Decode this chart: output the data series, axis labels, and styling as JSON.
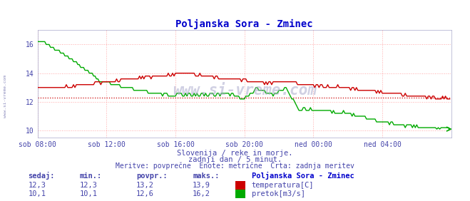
{
  "title": "Poljanska Sora - Zminec",
  "title_color": "#0000cc",
  "title_fontsize": 10,
  "bg_color": "#ffffff",
  "plot_bg_color": "#ffffff",
  "grid_color": "#ffaaaa",
  "ylabel_color": "#4444aa",
  "xlabel_color": "#4444aa",
  "tick_color": "#4444aa",
  "xticklabels": [
    "sob 08:00",
    "sob 12:00",
    "sob 16:00",
    "sob 20:00",
    "ned 00:00",
    "ned 04:00"
  ],
  "xtick_positions": [
    0,
    48,
    96,
    144,
    192,
    240
  ],
  "ytick_positions": [
    10,
    12,
    14,
    16
  ],
  "ylim": [
    9.5,
    17.0
  ],
  "xlim": [
    0,
    288
  ],
  "total_points": 288,
  "avg_temp_line": 12.3,
  "temp_color": "#cc0000",
  "flow_color": "#00aa00",
  "avg_line_color": "#cc0000",
  "footer_line1": "Slovenija / reke in morje.",
  "footer_line2": "zadnji dan / 5 minut.",
  "footer_line3": "Meritve: povprečne  Enote: metrične  Črta: zadnja meritev",
  "footer_color": "#4444aa",
  "legend_title": "Poljanska Sora - Zminec",
  "legend_title_color": "#0000cc",
  "legend_entries": [
    "temperatura[C]",
    "pretok[m3/s]"
  ],
  "legend_colors": [
    "#cc0000",
    "#00aa00"
  ],
  "table_headers": [
    "sedaj:",
    "min.:",
    "povpr.:",
    "maks.:"
  ],
  "table_temp": [
    "12,3",
    "12,3",
    "13,2",
    "13,9"
  ],
  "table_flow": [
    "10,1",
    "10,1",
    "12,6",
    "16,2"
  ],
  "table_color": "#4444aa",
  "watermark": "www.si-vreme.com",
  "watermark_color": "#aaaacc",
  "sidebar_text": "www.si-vreme.com"
}
